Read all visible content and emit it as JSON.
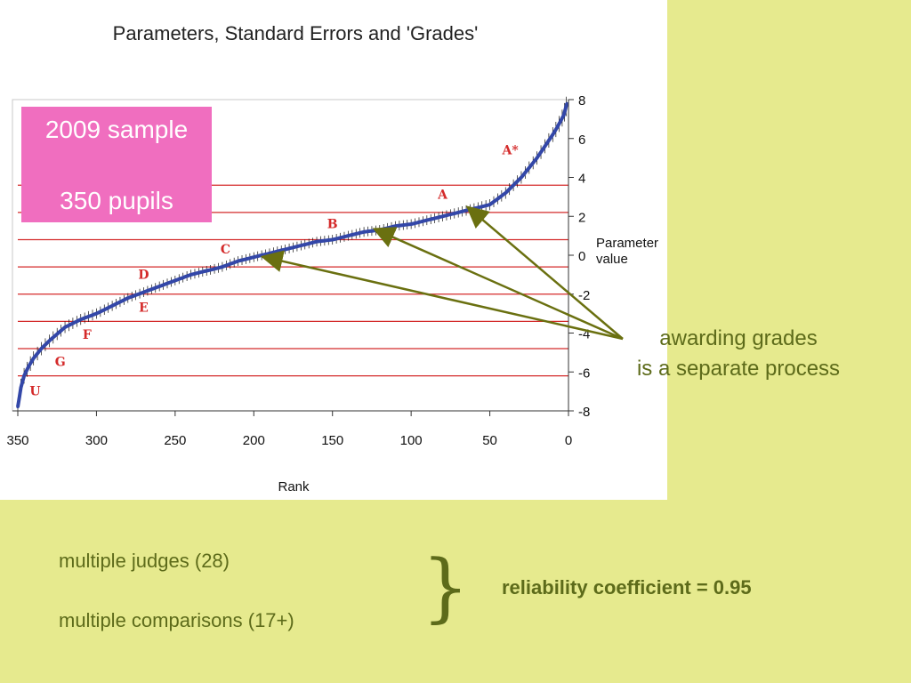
{
  "colors": {
    "slide_background": "#e6ea8e",
    "grade_line": "#d42a2a",
    "point_fill": "#3347a8",
    "annotation_text": "#5d6b1a",
    "arrow": "#6a7010",
    "sample_box": "#f06ebf"
  },
  "sample_box": {
    "line1": "2009 sample",
    "line2": "350 pupils"
  },
  "annotation": {
    "line1": "awarding grades",
    "line2": "is a separate process"
  },
  "footer": {
    "judges": "multiple judges (28)",
    "comparisons": "multiple comparisons (17+)",
    "brace": "}",
    "reliability": "reliability coefficient = 0.95"
  },
  "chart_data": {
    "type": "scatter",
    "title": "Parameters, Standard Errors and 'Grades'",
    "xlabel": "Rank",
    "ylabel": "Parameter value",
    "xlim": [
      350,
      0
    ],
    "ylim": [
      -8,
      8
    ],
    "x_reversed": true,
    "x_ticks": [
      350,
      300,
      250,
      200,
      150,
      100,
      50,
      0
    ],
    "y_ticks": [
      8,
      6,
      4,
      2,
      0,
      -2,
      -4,
      -6,
      -8
    ],
    "grid": false,
    "series": [
      {
        "x": [
          350,
          348,
          346,
          343,
          340,
          335,
          330,
          320,
          310,
          300,
          290,
          280,
          270,
          260,
          250,
          240,
          230,
          220,
          210,
          200,
          190,
          180,
          170,
          160,
          150,
          140,
          130,
          120,
          110,
          100,
          90,
          80,
          70,
          60,
          50,
          45,
          40,
          35,
          30,
          25,
          20,
          15,
          10,
          7,
          5,
          3,
          2,
          1
        ],
        "y": [
          -7.8,
          -6.8,
          -6.2,
          -5.7,
          -5.3,
          -4.8,
          -4.4,
          -3.7,
          -3.3,
          -3.0,
          -2.6,
          -2.2,
          -1.9,
          -1.6,
          -1.3,
          -1.0,
          -0.8,
          -0.6,
          -0.3,
          -0.1,
          0.1,
          0.3,
          0.5,
          0.7,
          0.8,
          1.0,
          1.2,
          1.3,
          1.5,
          1.6,
          1.8,
          2.0,
          2.2,
          2.4,
          2.6,
          2.9,
          3.2,
          3.6,
          4.0,
          4.5,
          5.0,
          5.6,
          6.2,
          6.6,
          6.9,
          7.2,
          7.5,
          7.8
        ],
        "error": [
          0.45,
          0.45,
          0.4,
          0.38,
          0.36,
          0.34,
          0.32,
          0.3,
          0.28,
          0.27,
          0.26,
          0.25,
          0.25,
          0.25,
          0.25,
          0.25,
          0.25,
          0.25,
          0.25,
          0.25,
          0.25,
          0.25,
          0.25,
          0.25,
          0.25,
          0.25,
          0.25,
          0.25,
          0.25,
          0.25,
          0.25,
          0.26,
          0.26,
          0.27,
          0.28,
          0.28,
          0.3,
          0.3,
          0.32,
          0.32,
          0.34,
          0.36,
          0.38,
          0.4,
          0.42,
          0.45,
          0.5,
          0.5
        ]
      }
    ],
    "grade_boundaries": [
      3.6,
      2.2,
      0.8,
      -0.6,
      -2.0,
      -3.4,
      -4.8,
      -6.2
    ],
    "grade_labels": [
      {
        "label": "A*",
        "x": 37,
        "y": 5.2
      },
      {
        "label": "A",
        "x": 80,
        "y": 2.9
      },
      {
        "label": "B",
        "x": 150,
        "y": 1.4
      },
      {
        "label": "C",
        "x": 218,
        "y": 0.1
      },
      {
        "label": "D",
        "x": 270,
        "y": -1.2
      },
      {
        "label": "E",
        "x": 270,
        "y": -2.9
      },
      {
        "label": "F",
        "x": 306,
        "y": -4.3
      },
      {
        "label": "G",
        "x": 323,
        "y": -5.7
      },
      {
        "label": "U",
        "x": 339,
        "y": -7.2
      }
    ],
    "arrow_targets": [
      {
        "x": 193,
        "y": -0.1
      },
      {
        "x": 122,
        "y": 1.3
      },
      {
        "x": 63,
        "y": 2.4
      }
    ]
  }
}
